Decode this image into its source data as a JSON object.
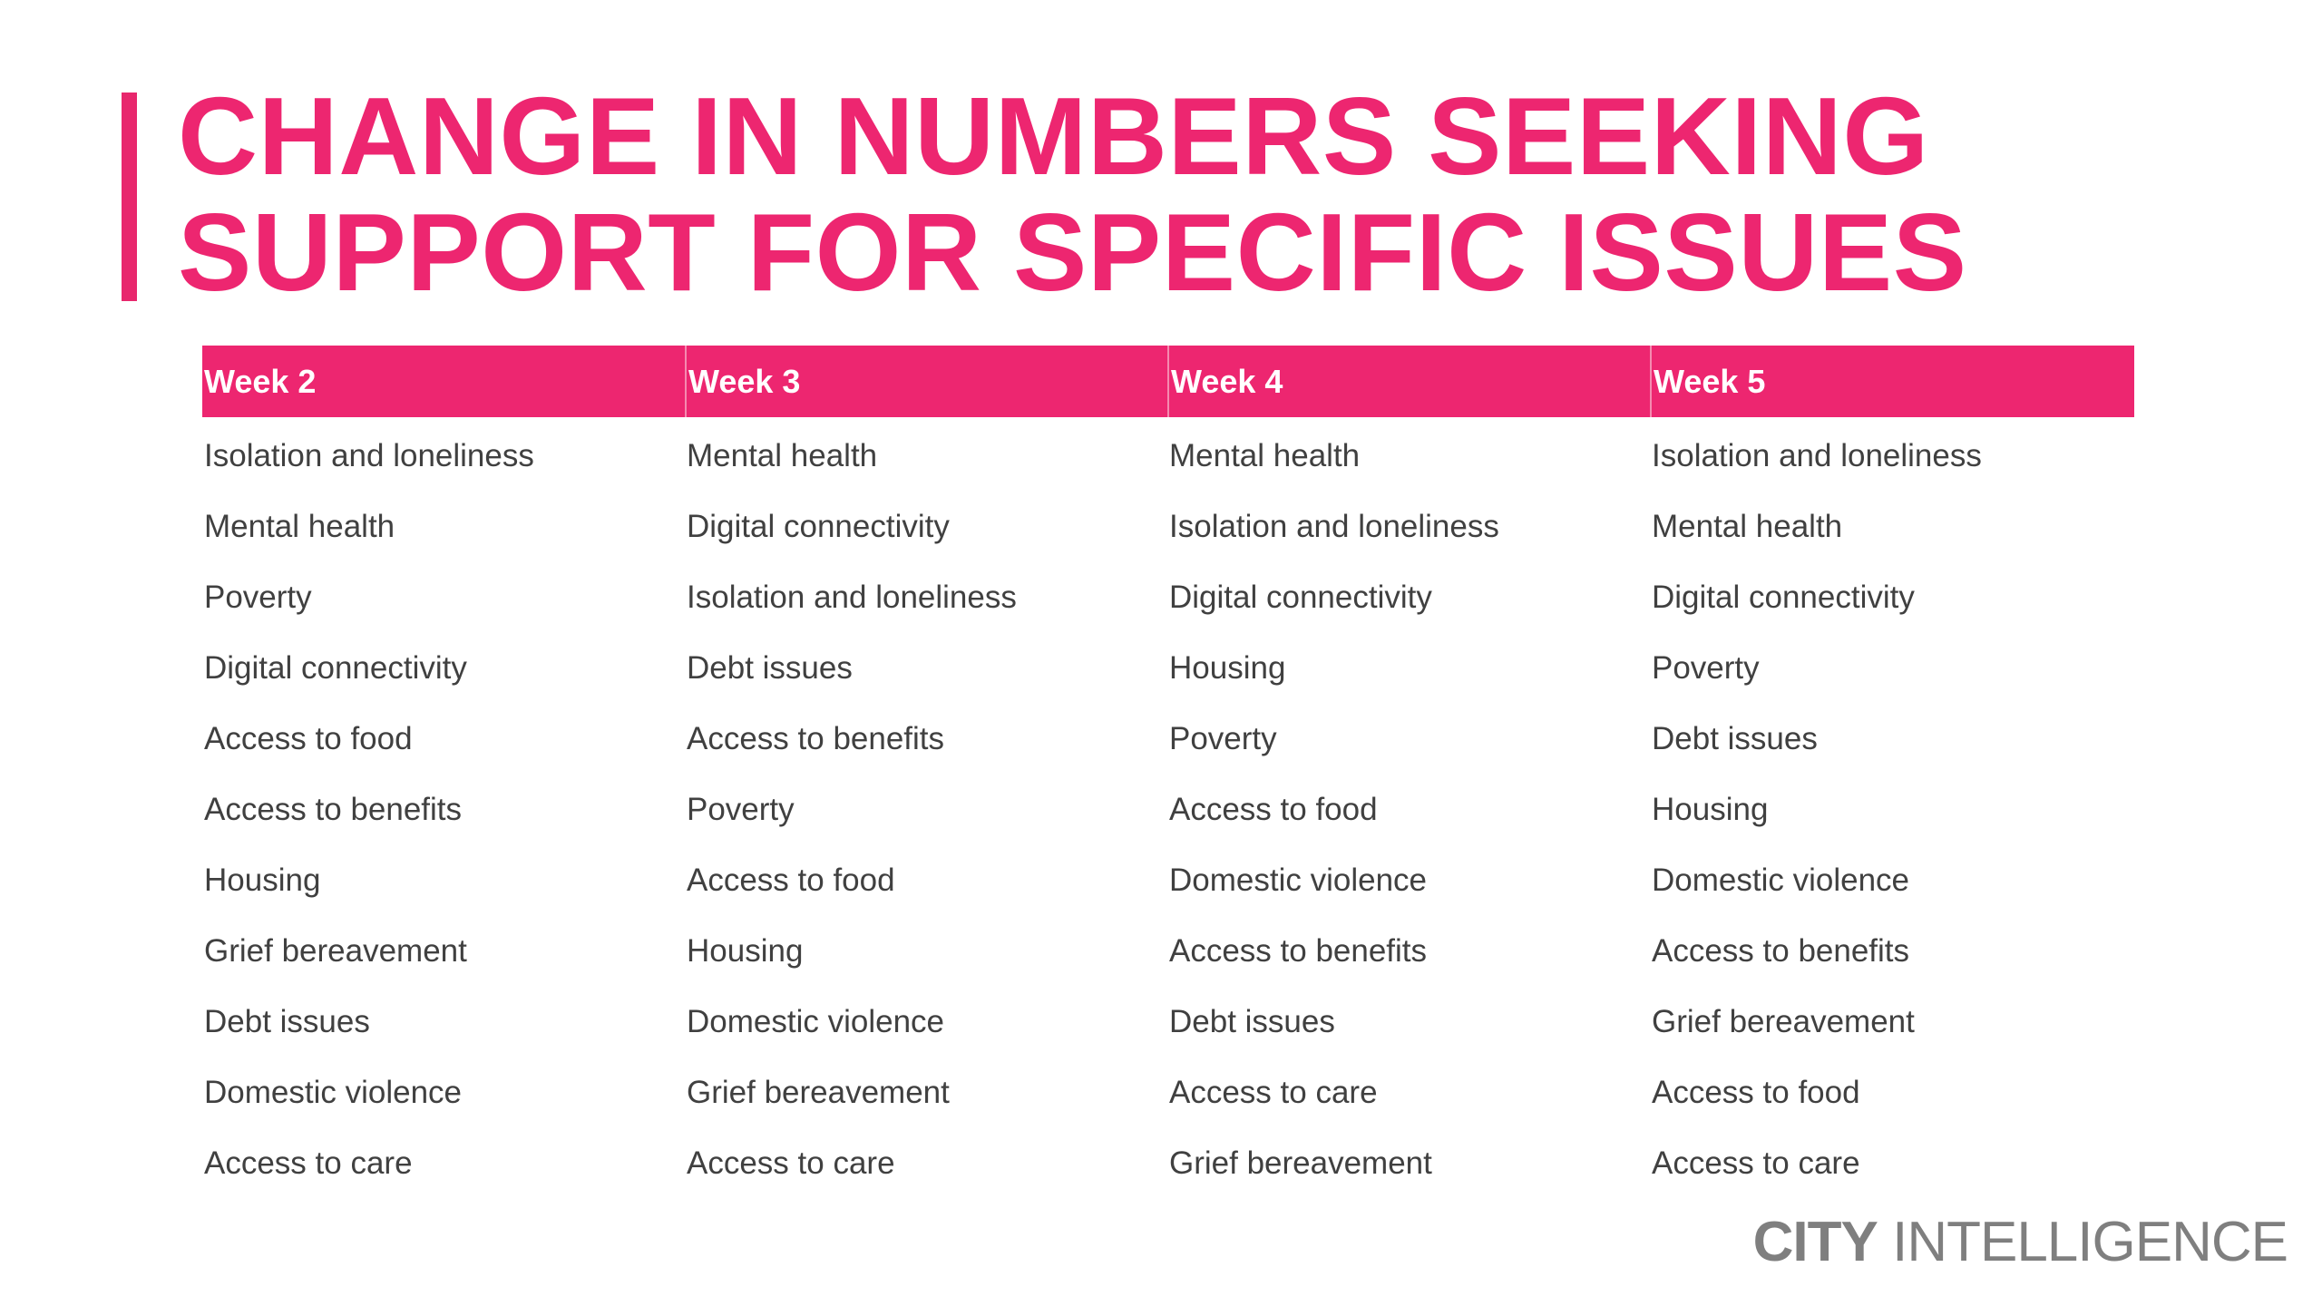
{
  "title": {
    "line1": "CHANGE IN NUMBERS SEEKING",
    "line2": "SUPPORT FOR SPECIFIC ISSUES"
  },
  "colors": {
    "accent": "#ed2670",
    "text": "#404040",
    "logo": "#7f7f7f"
  },
  "table": {
    "columns": [
      "Week 2",
      "Week 3",
      "Week 4",
      "Week 5"
    ],
    "rows": [
      [
        "Isolation and loneliness",
        "Mental health",
        "Mental health",
        "Isolation and loneliness"
      ],
      [
        "Mental health",
        "Digital connectivity",
        "Isolation and loneliness",
        "Mental health"
      ],
      [
        "Poverty",
        "Isolation and loneliness",
        "Digital connectivity",
        "Digital connectivity"
      ],
      [
        "Digital connectivity",
        "Debt issues",
        "Housing",
        "Poverty"
      ],
      [
        "Access to food",
        "Access to benefits",
        "Poverty",
        "Debt issues"
      ],
      [
        "Access to benefits",
        "Poverty",
        "Access to food",
        "Housing"
      ],
      [
        "Housing",
        "Access to food",
        "Domestic violence",
        "Domestic violence"
      ],
      [
        "Grief bereavement",
        "Housing",
        "Access to benefits",
        "Access to benefits"
      ],
      [
        "Debt issues",
        "Domestic violence",
        "Debt issues",
        "Grief bereavement"
      ],
      [
        "Domestic violence",
        "Grief bereavement",
        "Access to care",
        "Access to food"
      ],
      [
        "Access to care",
        "Access to care",
        "Grief bereavement",
        "Access to care"
      ]
    ]
  },
  "logo": {
    "bold": "CITY",
    "regular": " INTELLIGENCE"
  }
}
